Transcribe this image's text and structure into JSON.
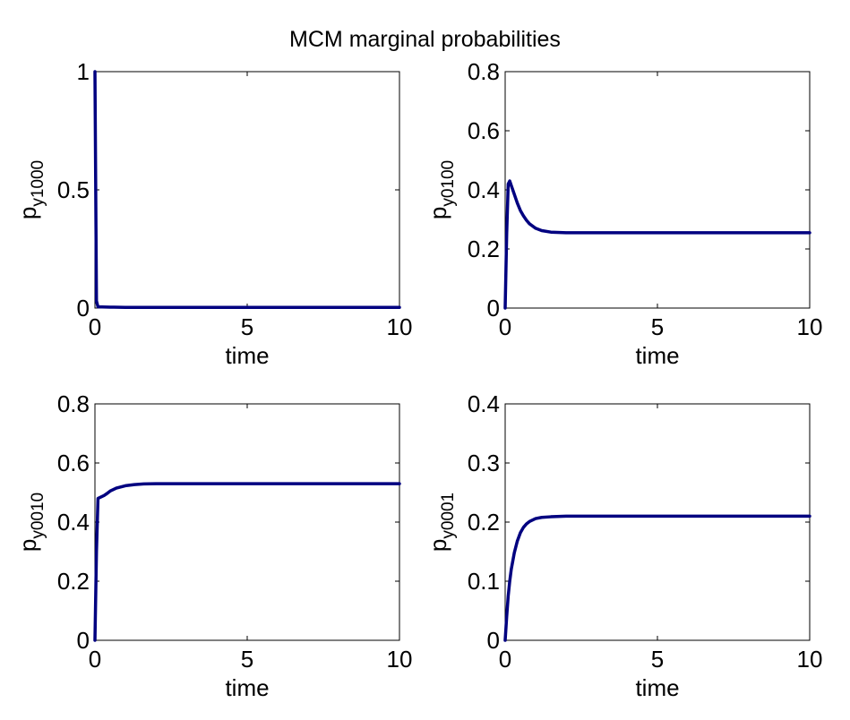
{
  "figure": {
    "title": "MCM marginal probabilities"
  },
  "chart_data": [
    {
      "type": "line",
      "title": "",
      "xlabel": "time",
      "ylabel_main": "p",
      "ylabel_sub": "y1000",
      "xlim": [
        0,
        10
      ],
      "ylim": [
        0,
        1
      ],
      "xticks": [
        0,
        5,
        10
      ],
      "yticks": [
        0,
        0.5,
        1
      ],
      "xtick_labels": [
        "0",
        "5",
        "10"
      ],
      "ytick_labels": [
        "0",
        "0.5",
        "1"
      ],
      "grid": false,
      "series": [
        {
          "color": "#000080",
          "x": [
            0,
            0.05,
            0.1,
            0.5,
            1,
            2,
            5,
            10
          ],
          "y": [
            1,
            0.03,
            0.005,
            0.004,
            0.003,
            0.003,
            0.003,
            0.003
          ]
        }
      ]
    },
    {
      "type": "line",
      "title": "",
      "xlabel": "time",
      "ylabel_main": "p",
      "ylabel_sub": "y0100",
      "xlim": [
        0,
        10
      ],
      "ylim": [
        0,
        0.8
      ],
      "xticks": [
        0,
        5,
        10
      ],
      "yticks": [
        0,
        0.2,
        0.4,
        0.6,
        0.8
      ],
      "xtick_labels": [
        "0",
        "5",
        "10"
      ],
      "ytick_labels": [
        "0",
        "0.2",
        "0.4",
        "0.6",
        "0.8"
      ],
      "grid": false,
      "series": [
        {
          "color": "#000080",
          "x": [
            0,
            0.05,
            0.1,
            0.15,
            0.2,
            0.3,
            0.4,
            0.5,
            0.6,
            0.7,
            0.8,
            1.0,
            1.2,
            1.5,
            2.0,
            2.5,
            3,
            5,
            10
          ],
          "y": [
            0,
            0.25,
            0.42,
            0.43,
            0.415,
            0.385,
            0.355,
            0.33,
            0.312,
            0.297,
            0.285,
            0.27,
            0.262,
            0.257,
            0.255,
            0.255,
            0.255,
            0.255,
            0.255
          ]
        }
      ]
    },
    {
      "type": "line",
      "title": "",
      "xlabel": "time",
      "ylabel_main": "p",
      "ylabel_sub": "y0010",
      "xlim": [
        0,
        10
      ],
      "ylim": [
        0,
        0.8
      ],
      "xticks": [
        0,
        5,
        10
      ],
      "yticks": [
        0,
        0.2,
        0.4,
        0.6,
        0.8
      ],
      "xtick_labels": [
        "0",
        "5",
        "10"
      ],
      "ytick_labels": [
        "0",
        "0.2",
        "0.4",
        "0.6",
        "0.8"
      ],
      "grid": false,
      "series": [
        {
          "color": "#000080",
          "x": [
            0,
            0.05,
            0.1,
            0.2,
            0.3,
            0.4,
            0.5,
            0.7,
            1.0,
            1.3,
            1.6,
            2.0,
            2.5,
            3,
            5,
            10
          ],
          "y": [
            0,
            0.3,
            0.48,
            0.485,
            0.49,
            0.497,
            0.505,
            0.515,
            0.523,
            0.527,
            0.529,
            0.53,
            0.53,
            0.53,
            0.53,
            0.53
          ]
        }
      ]
    },
    {
      "type": "line",
      "title": "",
      "xlabel": "time",
      "ylabel_main": "p",
      "ylabel_sub": "y0001",
      "xlim": [
        0,
        10
      ],
      "ylim": [
        0,
        0.4
      ],
      "xticks": [
        0,
        5,
        10
      ],
      "yticks": [
        0,
        0.1,
        0.2,
        0.3,
        0.4
      ],
      "xtick_labels": [
        "0",
        "5",
        "10"
      ],
      "ytick_labels": [
        "0",
        "0.1",
        "0.2",
        "0.3",
        "0.4"
      ],
      "grid": false,
      "series": [
        {
          "color": "#000080",
          "x": [
            0,
            0.05,
            0.1,
            0.15,
            0.2,
            0.3,
            0.4,
            0.5,
            0.6,
            0.7,
            0.8,
            1.0,
            1.2,
            1.5,
            2.0,
            3,
            5,
            10
          ],
          "y": [
            0,
            0.04,
            0.075,
            0.1,
            0.12,
            0.148,
            0.168,
            0.182,
            0.191,
            0.197,
            0.201,
            0.206,
            0.208,
            0.209,
            0.21,
            0.21,
            0.21,
            0.21
          ]
        }
      ]
    }
  ]
}
